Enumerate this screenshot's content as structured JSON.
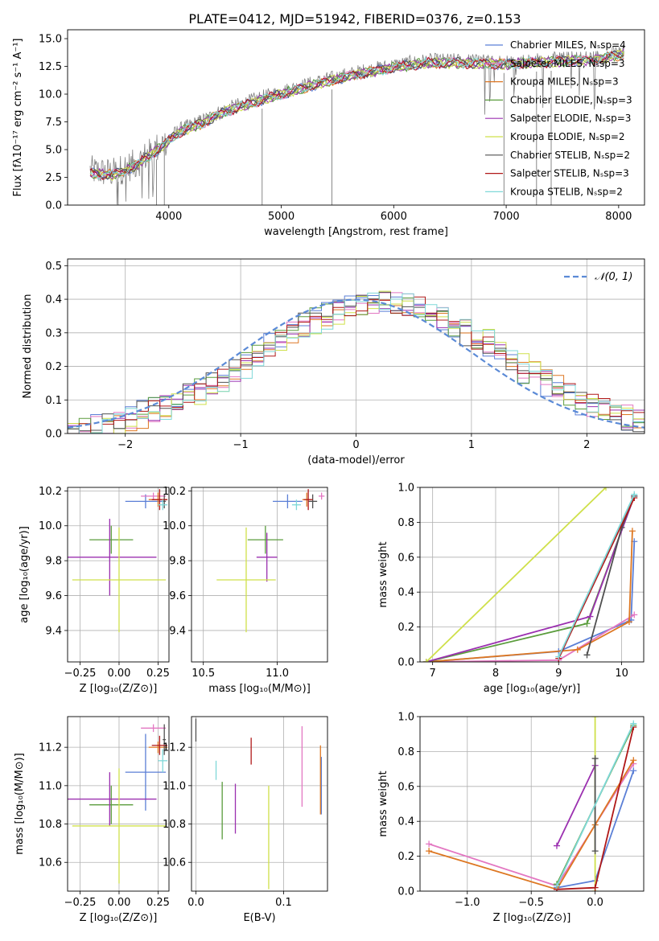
{
  "figure_title": "PLATE=0412, MJD=51942, FIBERID=0376, z=0.153",
  "colors": {
    "Chabrier MILES": "#5b7fd6",
    "Salpeter MILES": "#e377c2",
    "Kroupa MILES": "#dd7722",
    "Chabrier ELODIE": "#5a9c3c",
    "Salpeter ELODIE": "#9b30b0",
    "Kroupa ELODIE": "#cfe04a",
    "Chabrier STELIB": "#505050",
    "Salpeter STELIB": "#b01818",
    "Kroupa STELIB": "#7fd8d8",
    "data": "#808080",
    "normal": "#5b8ad6"
  },
  "models": [
    "Chabrier MILES",
    "Salpeter MILES",
    "Kroupa MILES",
    "Chabrier ELODIE",
    "Salpeter ELODIE",
    "Kroupa ELODIE",
    "Chabrier STELIB",
    "Salpeter STELIB",
    "Kroupa STELIB"
  ],
  "chart_data": [
    {
      "id": "spectrum",
      "type": "line",
      "xlabel": "wavelength [Angstrom, rest frame]",
      "ylabel": "Flux [fλ10⁻¹⁷ erg cm⁻² s⁻¹ A⁻¹]",
      "xlim": [
        3100,
        8230
      ],
      "ylim": [
        0,
        15.8
      ],
      "xticks": [
        "4000",
        "5000",
        "6000",
        "7000",
        "8000"
      ],
      "yticks": [
        "0.0",
        "2.5",
        "5.0",
        "7.5",
        "10.0",
        "12.5",
        "15.0"
      ],
      "legend": [
        "Chabrier MILES, N_SSP=4",
        "Salpeter MILES, N_SSP=3",
        "Kroupa MILES, N_SSP=3",
        "Chabrier ELODIE, N_SSP=3",
        "Salpeter ELODIE, N_SSP=3",
        "Kroupa ELODIE, N_SSP=2",
        "Chabrier STELIB, N_SSP=2",
        "Salpeter STELIB, N_SSP=3",
        "Kroupa STELIB, N_SSP=2"
      ],
      "legend_position": "right",
      "continuum": {
        "x": [
          3300,
          3500,
          3700,
          3900,
          4100,
          4300,
          4500,
          4800,
          5100,
          5400,
          5700,
          6000,
          6300,
          6600,
          7000,
          7400,
          7800,
          8050
        ],
        "y": [
          3.1,
          2.9,
          3.7,
          5.2,
          6.8,
          7.6,
          8.6,
          9.6,
          10.5,
          11.3,
          12.0,
          12.6,
          13.0,
          13.0,
          12.9,
          13.1,
          13.3,
          13.8
        ]
      }
    },
    {
      "id": "residuals",
      "type": "histogram",
      "xlabel": "(data-model)/error",
      "ylabel": "Normed distribution",
      "xlim": [
        -2.5,
        2.5
      ],
      "ylim": [
        0,
        0.52
      ],
      "xticks": [
        "−2",
        "−1",
        "0",
        "1",
        "2"
      ],
      "yticks": [
        "0.0",
        "0.1",
        "0.2",
        "0.3",
        "0.4",
        "0.5"
      ],
      "legend": [
        "𝒩(0, 1)"
      ],
      "legend_position": "top-right",
      "bin_edges": [
        -2.5,
        2.5
      ],
      "bin_width": 0.1,
      "normal_pdf": {
        "mean": 0,
        "std": 1
      }
    },
    {
      "id": "age_vs_Z",
      "type": "errorbar",
      "xlabel": "Z [log₁₀(Z/Z⊙)]",
      "ylabel": "age  [log₁₀(age/yr)]",
      "xlim": [
        -0.33,
        0.32
      ],
      "ylim": [
        9.22,
        10.22
      ],
      "xticks": [
        "−0.25",
        "0.00",
        "0.25"
      ],
      "yticks": [
        "9.4",
        "9.6",
        "9.8",
        "10.0",
        "10.2"
      ],
      "points": [
        {
          "model": "Chabrier MILES",
          "x": 0.17,
          "y": 10.14,
          "xerr": 0.13,
          "yerr": 0.04
        },
        {
          "model": "Salpeter MILES",
          "x": 0.22,
          "y": 10.17,
          "xerr": 0.08,
          "yerr": 0.02
        },
        {
          "model": "Kroupa MILES",
          "x": 0.25,
          "y": 10.15,
          "xerr": 0.06,
          "yerr": 0.04
        },
        {
          "model": "Chabrier ELODIE",
          "x": -0.05,
          "y": 9.92,
          "xerr": 0.14,
          "yerr": 0.08
        },
        {
          "model": "Salpeter ELODIE",
          "x": -0.06,
          "y": 9.82,
          "xerr": 0.3,
          "yerr": 0.22
        },
        {
          "model": "Kroupa ELODIE",
          "x": 0.0,
          "y": 9.69,
          "xerr": 0.3,
          "yerr": 0.3
        },
        {
          "model": "Chabrier STELIB",
          "x": 0.29,
          "y": 10.14,
          "xerr": 0.01,
          "yerr": 0.04
        },
        {
          "model": "Salpeter STELIB",
          "x": 0.26,
          "y": 10.15,
          "xerr": 0.05,
          "yerr": 0.06
        },
        {
          "model": "Kroupa STELIB",
          "x": 0.28,
          "y": 10.12,
          "xerr": 0.03,
          "yerr": 0.03
        }
      ]
    },
    {
      "id": "age_vs_mass",
      "type": "errorbar",
      "xlabel": "mass [log₁₀(M/M⊙)]",
      "ylabel": "",
      "xlim": [
        10.42,
        11.34
      ],
      "ylim": [
        9.22,
        10.22
      ],
      "xticks": [
        "10.5",
        "11.0"
      ],
      "yticks": [
        "9.4",
        "9.6",
        "9.8",
        "10.0",
        "10.2"
      ],
      "points": [
        {
          "model": "Chabrier MILES",
          "x": 11.07,
          "y": 10.14,
          "xerr": 0.1,
          "yerr": 0.04
        },
        {
          "model": "Salpeter MILES",
          "x": 11.3,
          "y": 10.17,
          "xerr": 0.02,
          "yerr": 0.02
        },
        {
          "model": "Kroupa MILES",
          "x": 11.2,
          "y": 10.15,
          "xerr": 0.03,
          "yerr": 0.04
        },
        {
          "model": "Chabrier ELODIE",
          "x": 10.92,
          "y": 9.92,
          "xerr": 0.12,
          "yerr": 0.08
        },
        {
          "model": "Salpeter ELODIE",
          "x": 10.93,
          "y": 9.82,
          "xerr": 0.07,
          "yerr": 0.14
        },
        {
          "model": "Kroupa ELODIE",
          "x": 10.79,
          "y": 9.69,
          "xerr": 0.2,
          "yerr": 0.3
        },
        {
          "model": "Chabrier STELIB",
          "x": 11.24,
          "y": 10.14,
          "xerr": 0.03,
          "yerr": 0.04
        },
        {
          "model": "Salpeter STELIB",
          "x": 11.21,
          "y": 10.15,
          "xerr": 0.03,
          "yerr": 0.06
        },
        {
          "model": "Kroupa STELIB",
          "x": 11.13,
          "y": 10.12,
          "xerr": 0.03,
          "yerr": 0.03
        }
      ]
    },
    {
      "id": "weight_vs_age",
      "type": "line",
      "xlabel": "age  [log₁₀(age/yr)]",
      "ylabel": "mass weight",
      "xlim": [
        6.8,
        10.35
      ],
      "ylim": [
        0,
        1
      ],
      "xticks": [
        "7",
        "8",
        "9",
        "10"
      ],
      "yticks": [
        "0.0",
        "0.2",
        "0.4",
        "0.6",
        "0.8",
        "1.0"
      ],
      "series": [
        {
          "model": "Chabrier MILES",
          "x": [
            6.9,
            9.0,
            10.15,
            10.2
          ],
          "y": [
            0.0,
            0.06,
            0.24,
            0.69
          ]
        },
        {
          "model": "Salpeter MILES",
          "x": [
            6.9,
            9.0,
            10.2
          ],
          "y": [
            0.0,
            0.01,
            0.27
          ]
        },
        {
          "model": "Kroupa MILES",
          "x": [
            6.9,
            9.3,
            10.12,
            10.17
          ],
          "y": [
            0.0,
            0.07,
            0.23,
            0.75
          ]
        },
        {
          "model": "Chabrier ELODIE",
          "x": [
            6.9,
            9.45,
            10.2
          ],
          "y": [
            0.0,
            0.22,
            0.95
          ]
        },
        {
          "model": "Salpeter ELODIE",
          "x": [
            6.9,
            9.5,
            10.2
          ],
          "y": [
            0.0,
            0.26,
            0.95
          ]
        },
        {
          "model": "Kroupa ELODIE",
          "x": [
            6.9,
            9.75
          ],
          "y": [
            0.0,
            1.0
          ]
        },
        {
          "model": "Chabrier STELIB",
          "x": [
            9.45,
            10.0,
            10.2
          ],
          "y": [
            0.04,
            0.77,
            0.95
          ]
        },
        {
          "model": "Salpeter STELIB",
          "x": [
            9.0,
            10.2
          ],
          "y": [
            0.02,
            0.94
          ]
        },
        {
          "model": "Kroupa STELIB",
          "x": [
            9.0,
            10.2
          ],
          "y": [
            0.03,
            0.96
          ]
        }
      ]
    },
    {
      "id": "mass_vs_Z",
      "type": "errorbar",
      "xlabel": "Z [log₁₀(Z/Z⊙)]",
      "ylabel": "mass [log₁₀(M/M⊙)]",
      "xlim": [
        -0.33,
        0.32
      ],
      "ylim": [
        10.45,
        11.36
      ],
      "xticks": [
        "−0.25",
        "0.00",
        "0.25"
      ],
      "yticks": [
        "10.6",
        "10.8",
        "11.0",
        "11.2"
      ],
      "points": [
        {
          "model": "Chabrier MILES",
          "x": 0.17,
          "y": 11.07,
          "xerr": 0.13,
          "yerr": 0.2
        },
        {
          "model": "Salpeter MILES",
          "x": 0.22,
          "y": 11.3,
          "xerr": 0.08,
          "yerr": 0.02
        },
        {
          "model": "Kroupa MILES",
          "x": 0.25,
          "y": 11.2,
          "xerr": 0.06,
          "yerr": 0.03
        },
        {
          "model": "Chabrier ELODIE",
          "x": -0.05,
          "y": 10.9,
          "xerr": 0.14,
          "yerr": 0.1
        },
        {
          "model": "Salpeter ELODIE",
          "x": -0.06,
          "y": 10.93,
          "xerr": 0.3,
          "yerr": 0.14
        },
        {
          "model": "Kroupa ELODIE",
          "x": 0.0,
          "y": 10.79,
          "xerr": 0.3,
          "yerr": 0.3
        },
        {
          "model": "Chabrier STELIB",
          "x": 0.29,
          "y": 11.24,
          "xerr": 0.01,
          "yerr": 0.08
        },
        {
          "model": "Salpeter STELIB",
          "x": 0.26,
          "y": 11.21,
          "xerr": 0.05,
          "yerr": 0.05
        },
        {
          "model": "Kroupa STELIB",
          "x": 0.28,
          "y": 11.13,
          "xerr": 0.03,
          "yerr": 0.06
        }
      ]
    },
    {
      "id": "mass_vs_ebv",
      "type": "errorbar",
      "xlabel": "E(B-V)",
      "ylabel": "",
      "xlim": [
        -0.005,
        0.15
      ],
      "ylim": [
        10.45,
        11.36
      ],
      "xticks": [
        "0.0",
        "0.1"
      ],
      "yticks": [
        "10.6",
        "10.8",
        "11.0",
        "11.2"
      ],
      "points": [
        {
          "model": "Chabrier MILES",
          "x": 0.143,
          "y": 11.0,
          "xerr": 0,
          "yerr": 0.15
        },
        {
          "model": "Salpeter MILES",
          "x": 0.121,
          "y": 11.1,
          "xerr": 0,
          "yerr": 0.21
        },
        {
          "model": "Kroupa MILES",
          "x": 0.142,
          "y": 11.03,
          "xerr": 0,
          "yerr": 0.18
        },
        {
          "model": "Chabrier ELODIE",
          "x": 0.03,
          "y": 10.87,
          "xerr": 0,
          "yerr": 0.15
        },
        {
          "model": "Salpeter ELODIE",
          "x": 0.045,
          "y": 10.88,
          "xerr": 0,
          "yerr": 0.13
        },
        {
          "model": "Kroupa ELODIE",
          "x": 0.083,
          "y": 10.73,
          "xerr": 0,
          "yerr": 0.27
        },
        {
          "model": "Chabrier STELIB",
          "x": 0.0,
          "y": 11.29,
          "xerr": 0,
          "yerr": 0.06
        },
        {
          "model": "Salpeter STELIB",
          "x": 0.063,
          "y": 11.18,
          "xerr": 0,
          "yerr": 0.07
        },
        {
          "model": "Kroupa STELIB",
          "x": 0.023,
          "y": 11.08,
          "xerr": 0,
          "yerr": 0.05
        }
      ]
    },
    {
      "id": "weight_vs_Z",
      "type": "line",
      "xlabel": "Z [log₁₀(Z/Z⊙)]",
      "ylabel": "mass weight",
      "xlim": [
        -1.37,
        0.38
      ],
      "ylim": [
        0,
        1
      ],
      "xticks": [
        "−1.0",
        "−0.5",
        "0.0"
      ],
      "yticks": [
        "0.0",
        "0.2",
        "0.4",
        "0.6",
        "0.8",
        "1.0"
      ],
      "series": [
        {
          "model": "Chabrier MILES",
          "x": [
            -0.3,
            0.0,
            0.3
          ],
          "y": [
            0.02,
            0.06,
            0.69
          ]
        },
        {
          "model": "Salpeter MILES",
          "x": [
            -1.3,
            -0.3,
            0.3
          ],
          "y": [
            0.27,
            0.03,
            0.73
          ]
        },
        {
          "model": "Kroupa MILES",
          "x": [
            -1.3,
            -0.3,
            0.0,
            0.3
          ],
          "y": [
            0.23,
            0.01,
            0.38,
            0.75
          ]
        },
        {
          "model": "Chabrier ELODIE",
          "x": [
            -0.3,
            0.3
          ],
          "y": [
            0.04,
            0.95
          ]
        },
        {
          "model": "Salpeter ELODIE",
          "x": [
            -0.3,
            0.0
          ],
          "y": [
            0.26,
            0.72
          ]
        },
        {
          "model": "Kroupa ELODIE",
          "x": [
            0.0,
            0.0
          ],
          "y": [
            0.0,
            1.0
          ]
        },
        {
          "model": "Chabrier STELIB",
          "x": [
            0.0,
            0.0
          ],
          "y": [
            0.23,
            0.76
          ]
        },
        {
          "model": "Salpeter STELIB",
          "x": [
            -0.3,
            0.0,
            0.3
          ],
          "y": [
            0.01,
            0.02,
            0.94
          ]
        },
        {
          "model": "Kroupa STELIB",
          "x": [
            -0.3,
            0.3
          ],
          "y": [
            0.03,
            0.96
          ]
        }
      ]
    }
  ]
}
